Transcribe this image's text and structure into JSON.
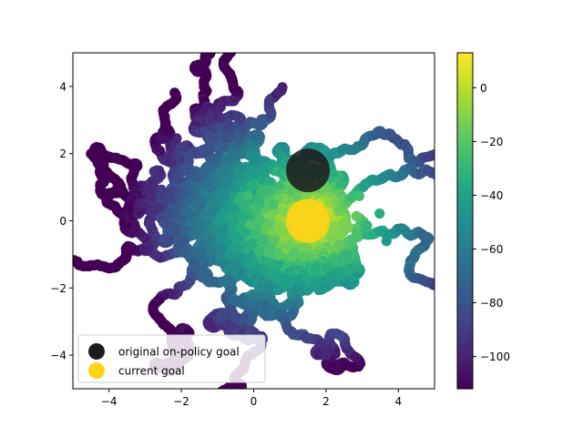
{
  "chart_data": {
    "type": "scatter",
    "title": "",
    "xlabel": "",
    "ylabel": "",
    "xlim": [
      -5,
      5
    ],
    "ylim": [
      -5,
      5
    ],
    "x_ticks": [
      -4,
      -2,
      0,
      2,
      4
    ],
    "y_ticks": [
      -4,
      -2,
      0,
      2,
      4
    ],
    "x_tick_labels": [
      "−4",
      "−2",
      "0",
      "2",
      "4"
    ],
    "y_tick_labels": [
      "−4",
      "−2",
      "0",
      "2",
      "4"
    ],
    "grid": false,
    "legend_placement": "lower-left",
    "colormap": "viridis",
    "colorbar": {
      "range": [
        -112,
        13
      ],
      "ticks": [
        0,
        -20,
        -40,
        -60,
        -80,
        -100
      ],
      "tick_labels": [
        "0",
        "−20",
        "−40",
        "−60",
        "−80",
        "−100"
      ]
    },
    "scatter_description_points": {
      "center": [
        0.5,
        0.0
      ],
      "spread_x": 5,
      "spread_y": 5
    },
    "series": [
      {
        "name": "original on-policy goal",
        "x": [
          1.5
        ],
        "y": [
          1.5
        ],
        "color": "#1c1c1c"
      },
      {
        "name": "current goal",
        "x": [
          1.5
        ],
        "y": [
          0.0
        ],
        "color": "#fdd319"
      }
    ]
  },
  "legend": {
    "items": [
      {
        "label": "original on-policy goal",
        "color": "#1c1c1c"
      },
      {
        "label": "current goal",
        "color": "#fdd319"
      }
    ]
  }
}
